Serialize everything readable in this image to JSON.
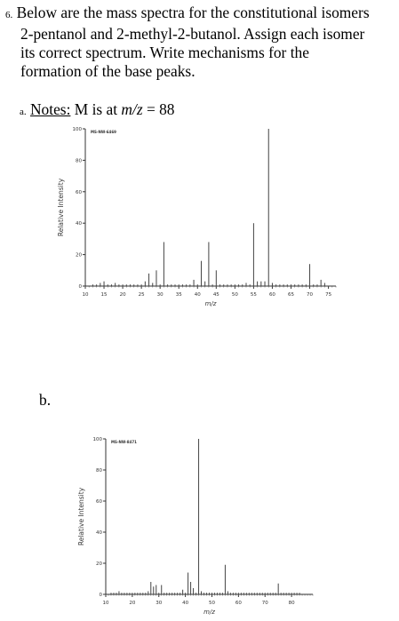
{
  "question": {
    "number": "6.",
    "lines": [
      "Below are the mass spectra for the constitutional isomers",
      "2-pentanol and 2-methyl-2-butanol.  Assign each isomer",
      "its correct spectrum.  Write mechanisms for the",
      "formation of the base peaks."
    ]
  },
  "part_a": {
    "marker": "a.",
    "notes_label": "Notes:",
    "note_text_pre": " M is at ",
    "note_mz": "m/z",
    "note_text_post": " = 88"
  },
  "part_b": {
    "marker": "b."
  },
  "chart_data": [
    {
      "type": "bar",
      "title": "",
      "source_label": "MS-NW-6469",
      "xlabel": "m/z",
      "ylabel": "Relative Intensity",
      "xlim": [
        10,
        77
      ],
      "ylim": [
        0,
        100
      ],
      "xticks": [
        10,
        15,
        20,
        25,
        30,
        35,
        40,
        45,
        50,
        55,
        60,
        65,
        70,
        75
      ],
      "yticks": [
        0,
        20,
        40,
        60,
        80,
        100
      ],
      "x": [
        12,
        13,
        14,
        15,
        16,
        17,
        18,
        19,
        20,
        21,
        22,
        23,
        24,
        25,
        26,
        27,
        28,
        29,
        30,
        31,
        32,
        33,
        34,
        35,
        36,
        37,
        38,
        39,
        40,
        41,
        42,
        43,
        44,
        45,
        46,
        47,
        48,
        49,
        50,
        51,
        52,
        53,
        54,
        55,
        56,
        57,
        58,
        59,
        60,
        61,
        62,
        63,
        64,
        65,
        66,
        67,
        68,
        69,
        70,
        71,
        72,
        73,
        74
      ],
      "values": [
        1,
        1,
        2,
        3,
        1,
        1,
        2,
        1,
        1,
        1,
        1,
        1,
        1,
        1,
        3,
        8,
        2,
        10,
        1,
        28,
        1,
        1,
        1,
        1,
        1,
        1,
        1,
        4,
        1,
        16,
        3,
        28,
        1,
        10,
        1,
        1,
        1,
        1,
        1,
        1,
        1,
        2,
        1,
        40,
        3,
        3,
        3,
        100,
        2,
        1,
        1,
        1,
        1,
        1,
        1,
        1,
        1,
        1,
        14,
        1,
        1,
        4,
        2
      ]
    },
    {
      "type": "bar",
      "title": "",
      "source_label": "MS-NW-8471",
      "xlabel": "m/z",
      "ylabel": "Relative Intensity",
      "xlim": [
        10,
        88
      ],
      "ylim": [
        0,
        100
      ],
      "xticks": [
        10,
        20,
        30,
        40,
        50,
        60,
        70,
        80
      ],
      "yticks": [
        0,
        20,
        40,
        60,
        80,
        100
      ],
      "x": [
        12,
        13,
        14,
        15,
        16,
        17,
        18,
        19,
        20,
        21,
        22,
        23,
        24,
        25,
        26,
        27,
        28,
        29,
        30,
        31,
        32,
        33,
        34,
        35,
        36,
        37,
        38,
        39,
        40,
        41,
        42,
        43,
        44,
        45,
        46,
        47,
        48,
        49,
        50,
        51,
        52,
        53,
        54,
        55,
        56,
        57,
        58,
        59,
        60,
        61,
        62,
        63,
        64,
        65,
        66,
        67,
        68,
        69,
        70,
        71,
        72,
        73,
        74,
        75,
        76,
        77,
        78,
        79,
        80,
        81,
        82,
        83
      ],
      "values": [
        1,
        1,
        1,
        2,
        1,
        1,
        1,
        1,
        1,
        1,
        1,
        1,
        1,
        1,
        2,
        8,
        5,
        6,
        1,
        6,
        1,
        1,
        1,
        1,
        1,
        1,
        1,
        3,
        1,
        14,
        8,
        4,
        1,
        100,
        2,
        1,
        1,
        1,
        1,
        1,
        1,
        1,
        1,
        19,
        2,
        1,
        1,
        1,
        1,
        1,
        1,
        1,
        1,
        1,
        1,
        1,
        1,
        1,
        1,
        1,
        1,
        1,
        1,
        7,
        1,
        1,
        1,
        1,
        1,
        1,
        1,
        1
      ]
    }
  ]
}
